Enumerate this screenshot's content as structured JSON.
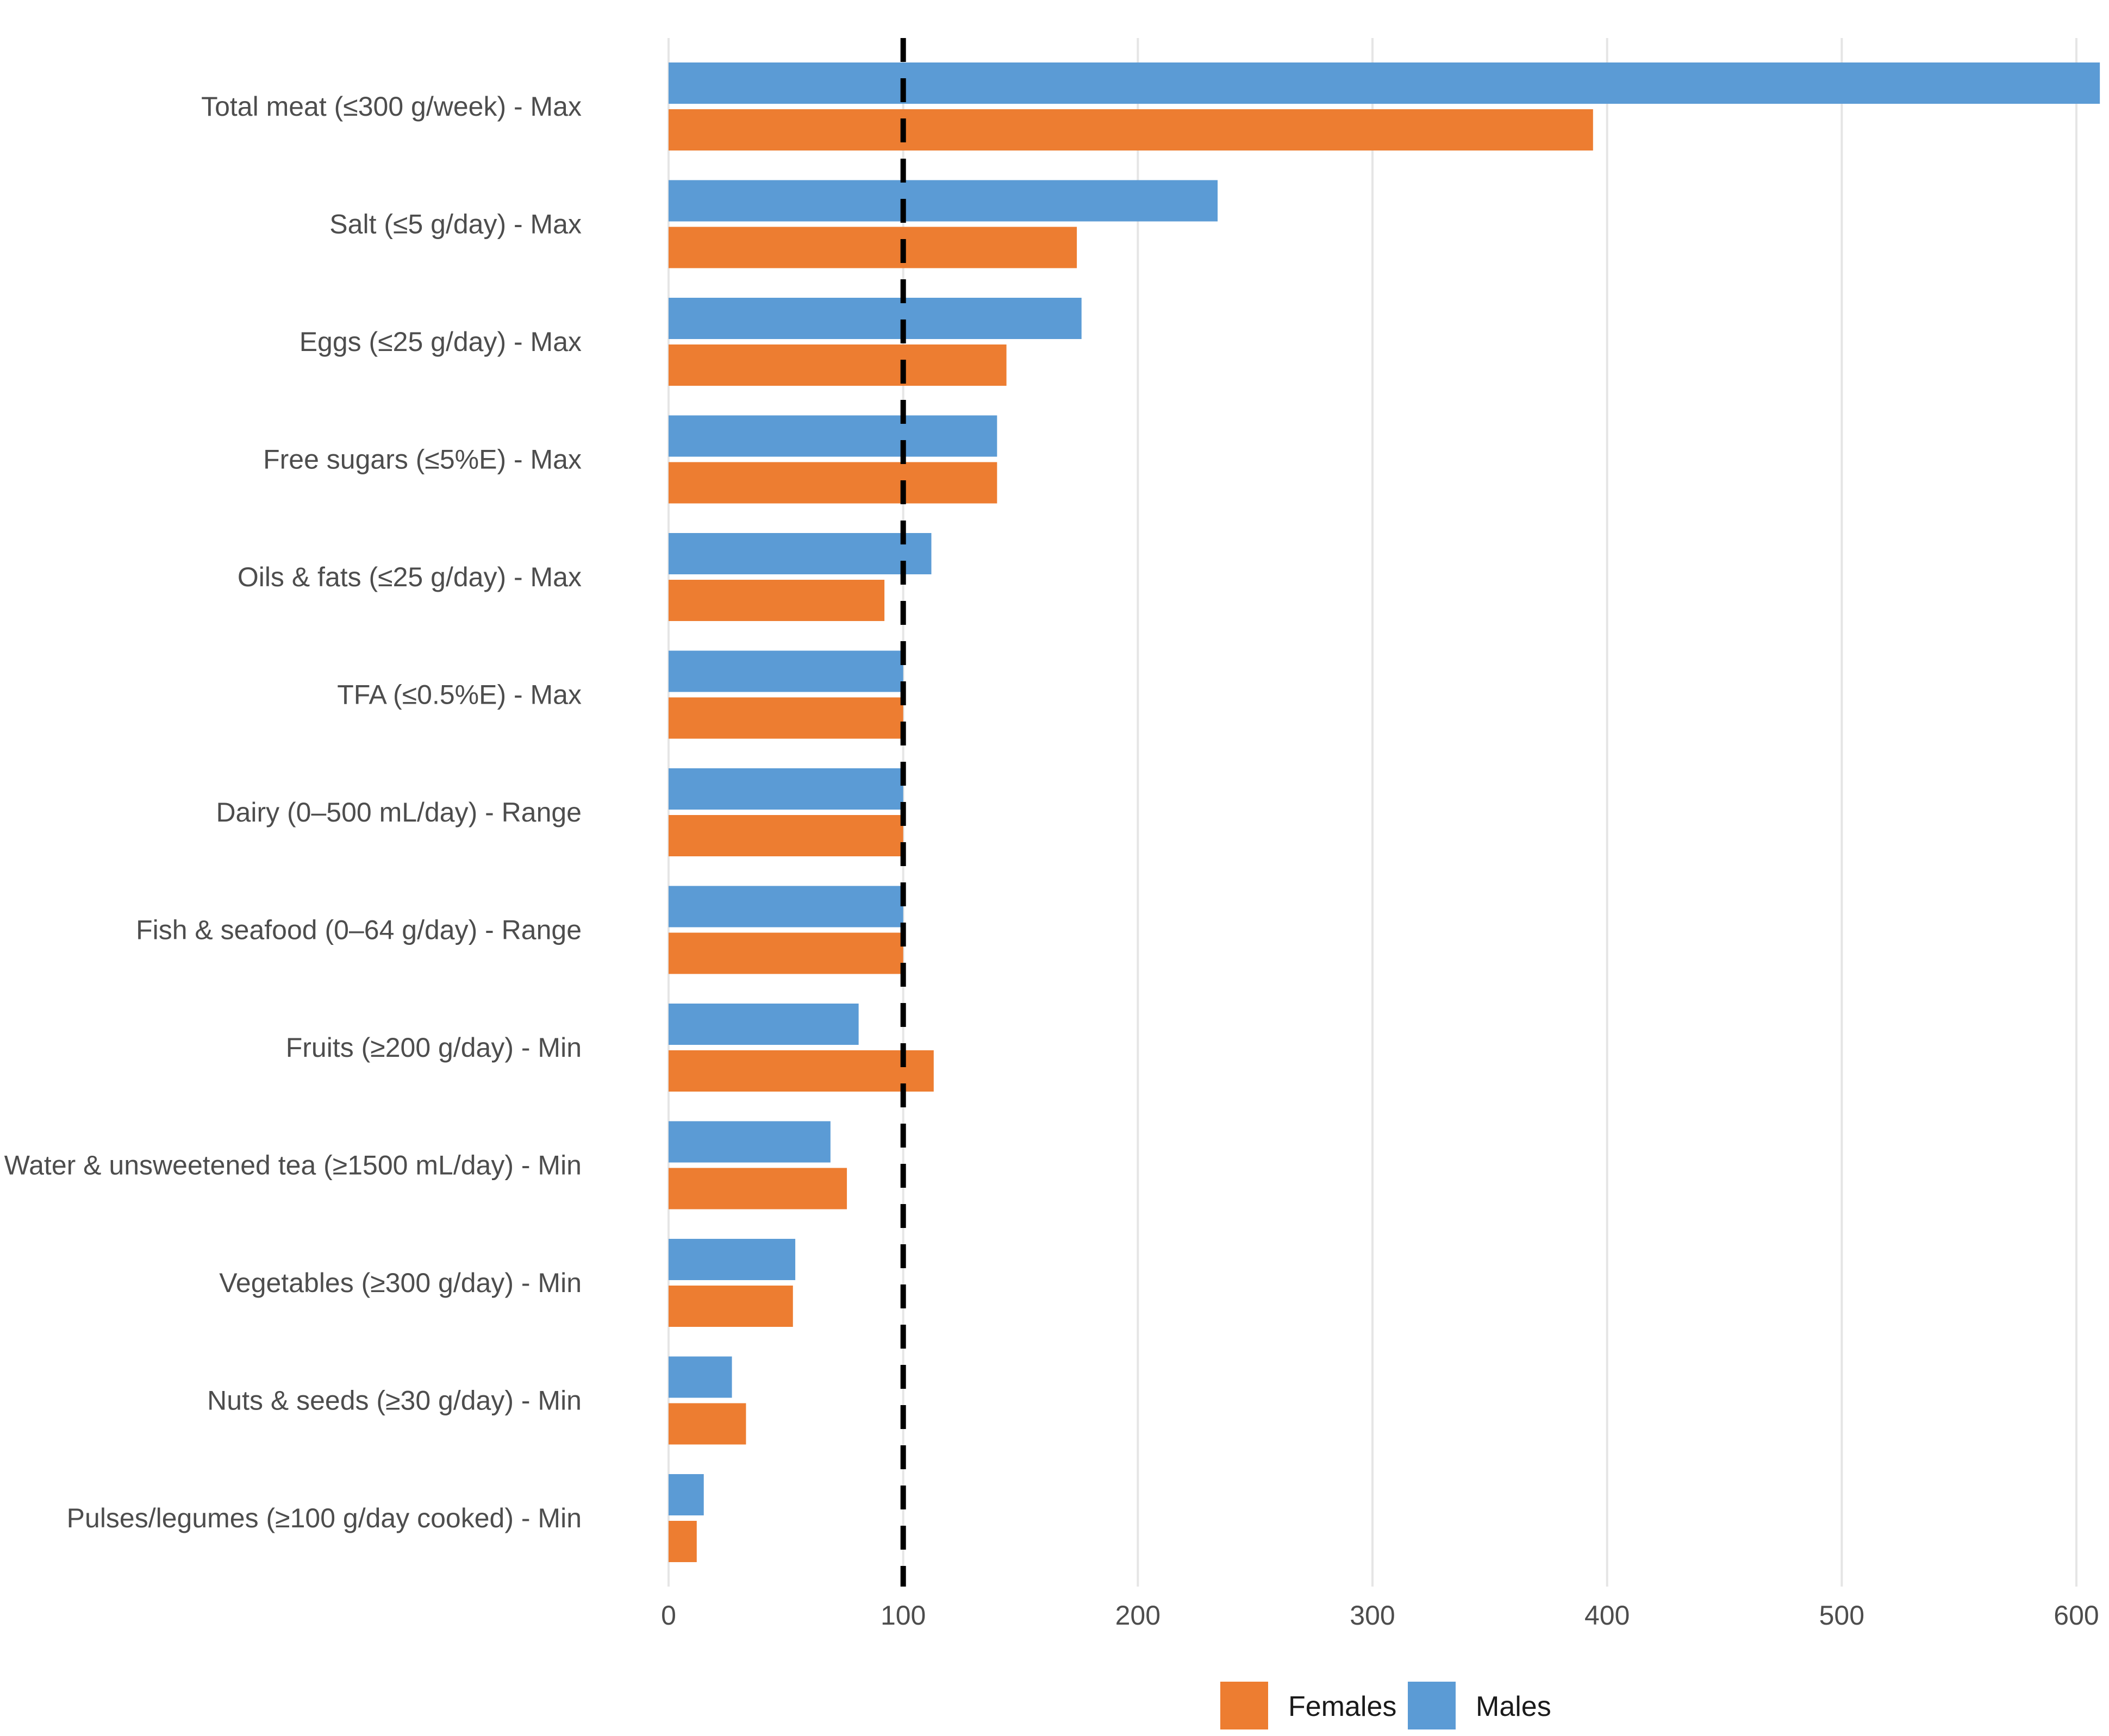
{
  "chart_data": {
    "type": "bar",
    "orientation": "horizontal",
    "title": "",
    "xlabel": "",
    "ylabel": "",
    "xlim": [
      0,
      610
    ],
    "x_ticks": [
      0,
      100,
      200,
      300,
      400,
      500,
      600
    ],
    "x_tick_labels": [
      "0",
      "100",
      "200",
      "300",
      "400",
      "500",
      "600"
    ],
    "reference_line": {
      "value": 100,
      "style": "dashed",
      "color": "#000000"
    },
    "grid": "vertical major",
    "legend_position": "bottom",
    "categories": [
      "Total meat (≤300 g/week) - Max",
      "Salt (≤5 g/day) - Max",
      "Eggs (≤25 g/day) - Max",
      "Free sugars (≤5%E) - Max",
      "Oils & fats (≤25 g/day) - Max",
      "TFA (≤0.5%E) - Max",
      "Dairy (0–500 mL/day) - Range",
      "Fish & seafood (0–64 g/day) - Range",
      "Fruits (≥200 g/day) - Min",
      "Water & unsweetened tea (≥1500 mL/day) - Min",
      "Vegetables (≥300 g/day) - Min",
      "Nuts & seeds (≥30 g/day) - Min",
      "Pulses/legumes (≥100 g/day cooked) - Min"
    ],
    "series": [
      {
        "name": "Males",
        "color": "#5b9bd5",
        "values": [
          610,
          234,
          176,
          140,
          112,
          100,
          100,
          100,
          81,
          69,
          54,
          27,
          15
        ]
      },
      {
        "name": "Females",
        "color": "#ed7d31",
        "values": [
          394,
          174,
          144,
          140,
          92,
          100,
          100,
          100,
          113,
          76,
          53,
          33,
          12
        ]
      }
    ],
    "legend": [
      {
        "name": "Females",
        "color": "#ed7d31"
      },
      {
        "name": "Males",
        "color": "#5b9bd5"
      }
    ]
  }
}
